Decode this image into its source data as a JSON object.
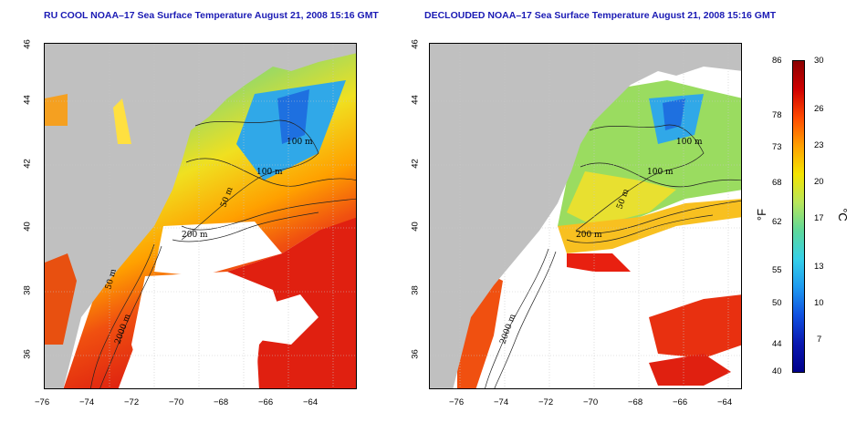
{
  "titles": {
    "left": "RU COOL NOAA–17 Sea Surface Temperature August 21, 2008 15:16 GMT",
    "right": "DECLOUDED NOAA–17 Sea Surface Temperature August 21, 2008 15:16 GMT"
  },
  "lon_ticks": [
    "−76",
    "−74",
    "−72",
    "−70",
    "−68",
    "−66",
    "−64"
  ],
  "lat_ticks": [
    "36",
    "38",
    "40",
    "42",
    "44",
    "46"
  ],
  "contour_labels": {
    "left": [
      "100 m",
      "100 m",
      "50 m",
      "200 m",
      "50 m",
      "2000 m"
    ],
    "right": [
      "100 m",
      "100 m",
      "50 m",
      "200 m",
      "2000 m"
    ]
  },
  "colorbar": {
    "fahrenheit_ticks": [
      "86",
      "78",
      "73",
      "68",
      "62",
      "55",
      "50",
      "44",
      "40"
    ],
    "celsius_ticks": [
      "30",
      "26",
      "23",
      "20",
      "17",
      "13",
      "10",
      "7"
    ],
    "fahrenheit_unit": "°F",
    "celsius_unit": "°C"
  },
  "colors": {
    "land": "#c0c0c0",
    "title": "#1a1ab4",
    "cold": "#1060e0",
    "warm": "#d81010"
  }
}
